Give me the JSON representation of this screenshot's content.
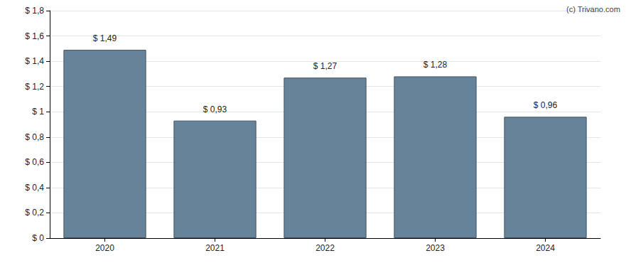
{
  "chart_data": {
    "type": "bar",
    "annotations": [
      "(c) Trivano.com"
    ],
    "categories": [
      "2020",
      "2021",
      "2022",
      "2023",
      "2024"
    ],
    "values": [
      1.49,
      0.93,
      1.27,
      1.28,
      0.96
    ],
    "value_labels": [
      "$ 1,49",
      "$ 0,93",
      "$ 1,27",
      "$ 1,28",
      "$ 0,96"
    ],
    "data_labels": true,
    "color": "#67839a",
    "ylim": [
      0,
      1.8
    ],
    "yticks": [
      {
        "value": 0,
        "label": "$ 0"
      },
      {
        "value": 0.2,
        "label": "$ 0,2"
      },
      {
        "value": 0.4,
        "label": "$ 0,4"
      },
      {
        "value": 0.6,
        "label": "$ 0,6"
      },
      {
        "value": 0.8,
        "label": "$ 0,8"
      },
      {
        "value": 1,
        "label": "$ 1"
      },
      {
        "value": 1.2,
        "label": "$ 1,2"
      },
      {
        "value": 1.4,
        "label": "$ 1,4"
      },
      {
        "value": 1.6,
        "label": "$ 1,6"
      },
      {
        "value": 1.8,
        "label": "$ 1,8"
      }
    ],
    "grid": true
  }
}
